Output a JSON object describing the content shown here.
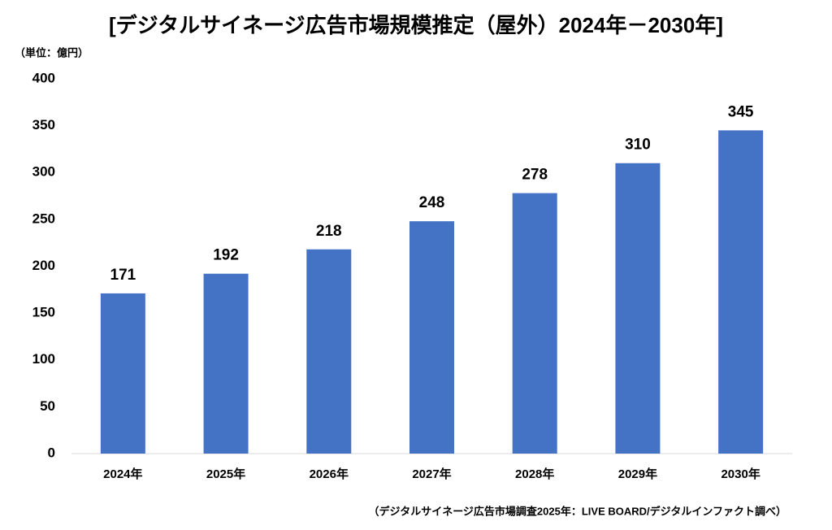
{
  "chart_data": {
    "type": "bar",
    "title": "[デジタルサイネージ広告市場規模推定（屋外）2024年－2030年]",
    "y_label": "（単位：億円）",
    "source": "（デジタルサイネージ広告市場調査2025年：LIVE BOARD/デジタルインファクト調べ）",
    "categories": [
      "2024年",
      "2025年",
      "2026年",
      "2027年",
      "2028年",
      "2029年",
      "2030年"
    ],
    "values": [
      171,
      192,
      218,
      248,
      278,
      310,
      345
    ],
    "color": "#4472c4",
    "ylim": [
      0,
      400
    ],
    "yticks": [
      0,
      50,
      100,
      150,
      200,
      250,
      300,
      350,
      400
    ],
    "grid": false
  }
}
